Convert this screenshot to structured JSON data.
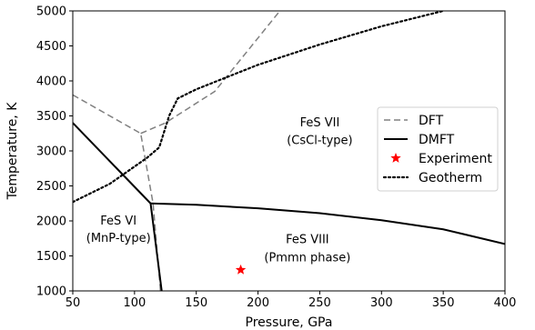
{
  "chart_data": {
    "type": "line",
    "title": "",
    "xlabel": "Pressure, GPa",
    "ylabel": "Temperature, K",
    "xlim": [
      50,
      400
    ],
    "ylim": [
      1000,
      5000
    ],
    "xticks": [
      50,
      100,
      150,
      200,
      250,
      300,
      350,
      400
    ],
    "yticks": [
      1000,
      1500,
      2000,
      2500,
      3000,
      3500,
      4000,
      4500,
      5000
    ],
    "grid": false,
    "legend_position": "right",
    "series": [
      {
        "name": "DFT",
        "style": "dashed",
        "color": "#808080",
        "segments": [
          [
            [
              50,
              3800
            ],
            [
              105,
              3250
            ],
            [
              115,
              2250
            ],
            [
              121,
              1000
            ]
          ],
          [
            [
              105,
              3250
            ],
            [
              125,
              3400
            ],
            [
              165,
              3850
            ],
            [
              220,
              5050
            ]
          ]
        ]
      },
      {
        "name": "DMFT",
        "style": "solid",
        "color": "#000000",
        "segments": [
          [
            [
              50,
              3400
            ],
            [
              113,
              2250
            ],
            [
              122,
              1000
            ]
          ],
          [
            [
              113,
              2250
            ],
            [
              150,
              2230
            ],
            [
              200,
              2180
            ],
            [
              250,
              2110
            ],
            [
              300,
              2010
            ],
            [
              350,
              1880
            ],
            [
              400,
              1670
            ]
          ]
        ]
      },
      {
        "name": "Experiment",
        "style": "marker",
        "color": "#ff0000",
        "marker": "star",
        "points": [
          [
            186,
            1300
          ]
        ]
      },
      {
        "name": "Geotherm",
        "style": "dotted",
        "color": "#000000",
        "segments": [
          [
            [
              50,
              2270
            ],
            [
              80,
              2530
            ],
            [
              110,
              2900
            ],
            [
              120,
              3050
            ],
            [
              128,
              3500
            ],
            [
              135,
              3750
            ],
            [
              150,
              3880
            ],
            [
              200,
              4230
            ],
            [
              250,
              4520
            ],
            [
              300,
              4780
            ],
            [
              350,
              5000
            ],
            [
              355,
              5050
            ]
          ]
        ]
      }
    ],
    "annotations": [
      {
        "text": "FeS VII",
        "x": 250,
        "y": 3350
      },
      {
        "text": "(CsCl-type)",
        "x": 250,
        "y": 3100
      },
      {
        "text": "FeS VI",
        "x": 87,
        "y": 1950
      },
      {
        "text": "(MnP-type)",
        "x": 87,
        "y": 1700
      },
      {
        "text": "FeS VIII",
        "x": 240,
        "y": 1680
      },
      {
        "text": "(Pmmn phase)",
        "x": 240,
        "y": 1420
      }
    ]
  }
}
